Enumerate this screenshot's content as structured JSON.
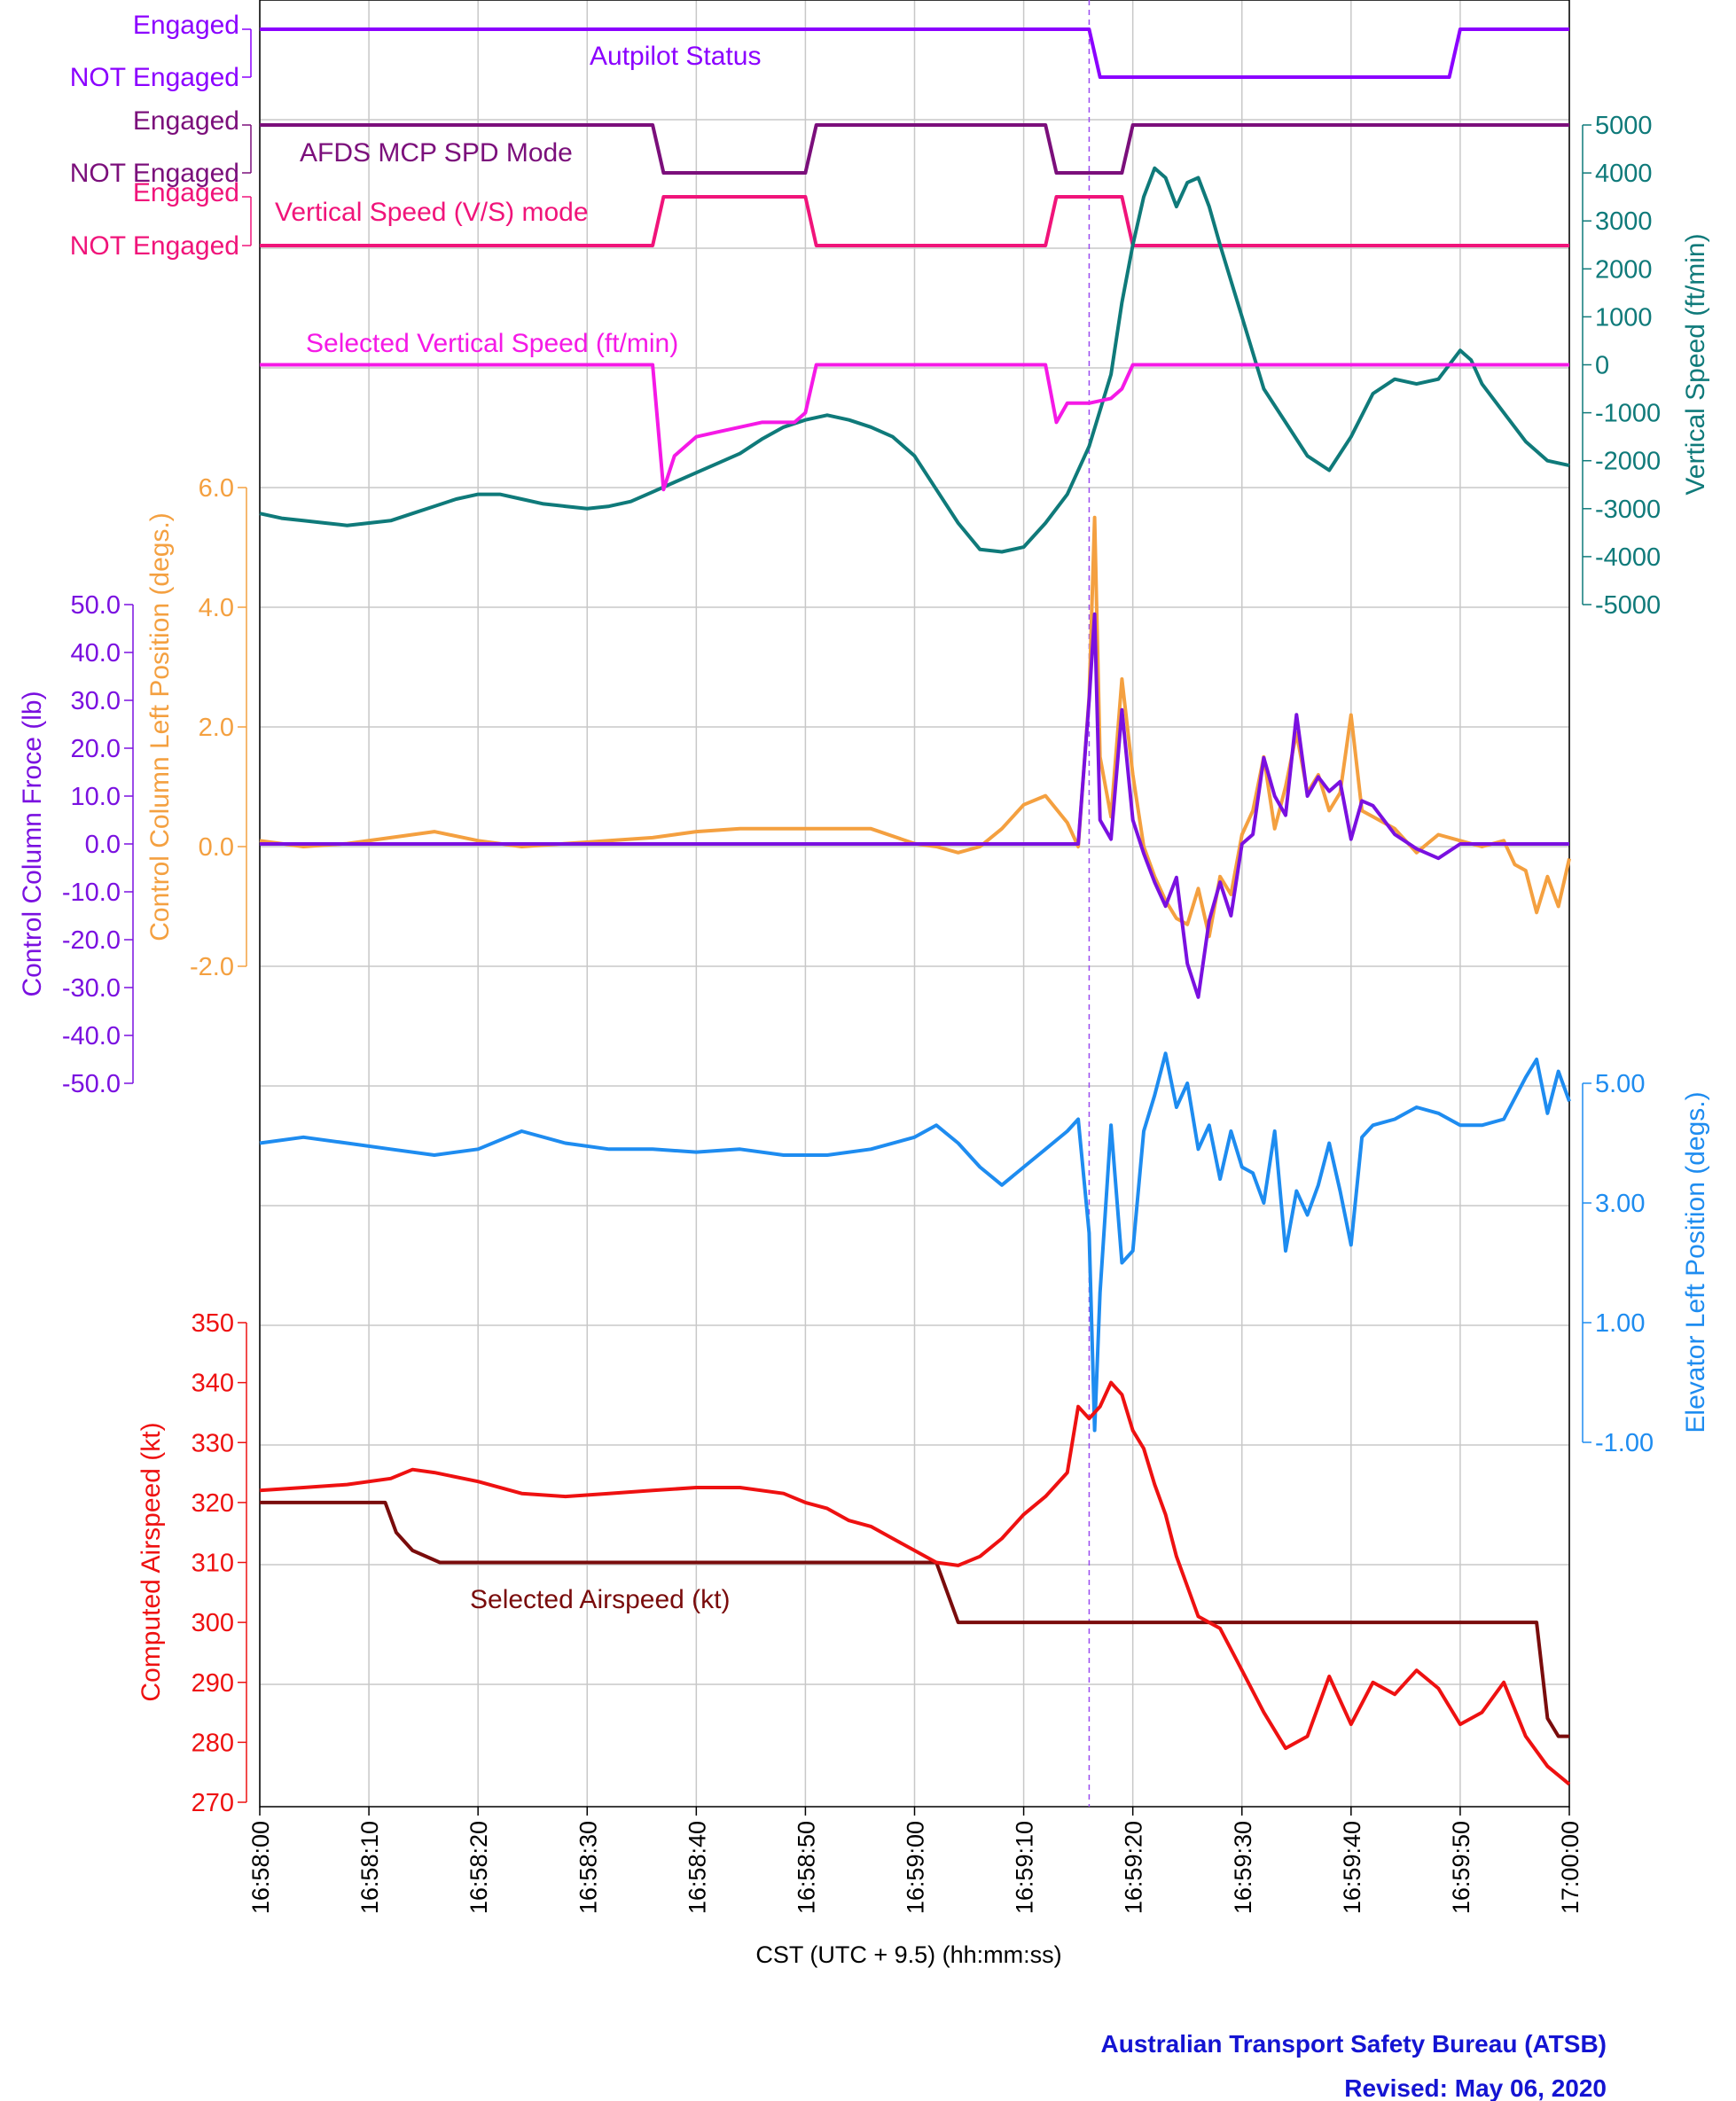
{
  "colors": {
    "autopilot": "#8B00FF",
    "mcp_spd": "#7B0F7B",
    "vs_mode": "#F0147A",
    "sel_vs": "#F519E6",
    "vs": "#0F7A7A",
    "cc_pos": "#F4A040",
    "cc_force": "#7A10E0",
    "elevator": "#1E8CF0",
    "airspeed": "#EE1111",
    "sel_airspeed": "#7A0C0C",
    "atsb": "#1414D2",
    "grid": "#C8C8C8"
  },
  "footer": {
    "agency": "Australian Transport Safety Bureau (ATSB)",
    "revised": "Revised: May 06, 2020"
  },
  "chart_data": {
    "type": "line",
    "x_label": "CST (UTC + 9.5) (hh:mm:ss)",
    "x_ticks": [
      "16:58:00",
      "16:58:10",
      "16:58:20",
      "16:58:30",
      "16:58:40",
      "16:58:50",
      "16:59:00",
      "16:59:10",
      "16:59:20",
      "16:59:30",
      "16:59:40",
      "16:59:50",
      "17:00:00"
    ],
    "x_range_seconds": [
      0,
      120
    ],
    "event_marker_seconds": 76,
    "discrete": [
      {
        "name": "Autpilot Status",
        "states": [
          "Engaged",
          "NOT Engaged"
        ],
        "x": [
          0,
          76,
          77,
          109,
          110,
          120
        ],
        "v": [
          1,
          1,
          0,
          0,
          1,
          1
        ]
      },
      {
        "name": "AFDS MCP SPD Mode",
        "states": [
          "Engaged",
          "NOT Engaged"
        ],
        "x": [
          0,
          36,
          37,
          50,
          51,
          72,
          73,
          79,
          80,
          120
        ],
        "v": [
          1,
          1,
          0,
          0,
          1,
          1,
          0,
          0,
          1,
          1
        ]
      },
      {
        "name": "Vertical Speed (V/S) mode",
        "states": [
          "Engaged",
          "NOT Engaged"
        ],
        "x": [
          0,
          36,
          37,
          50,
          51,
          72,
          73,
          79,
          80,
          120
        ],
        "v": [
          0,
          0,
          1,
          1,
          0,
          0,
          1,
          1,
          0,
          0
        ]
      }
    ],
    "vertical_speed": {
      "ylabel": "Vertical Speed (ft/min)",
      "y_ticks": [
        "5000",
        "4000",
        "3000",
        "2000",
        "1000",
        "0",
        "-1000",
        "-2000",
        "-3000",
        "-4000",
        "-5000"
      ],
      "ylim": [
        -5000,
        5000
      ],
      "series": [
        {
          "name": "Selected Vertical Speed (ft/min)",
          "x": [
            0,
            36,
            37,
            38,
            40,
            42,
            44,
            46,
            49,
            50,
            51,
            72,
            73,
            74,
            76,
            78,
            79,
            80,
            120
          ],
          "y": [
            0,
            0,
            -2600,
            -1900,
            -1500,
            -1400,
            -1300,
            -1200,
            -1200,
            -1000,
            0,
            0,
            -1200,
            -800,
            -800,
            -700,
            -500,
            0,
            0
          ]
        },
        {
          "name": "",
          "x": [
            0,
            2,
            4,
            6,
            8,
            10,
            12,
            14,
            16,
            18,
            20,
            22,
            24,
            26,
            28,
            30,
            32,
            34,
            36,
            38,
            40,
            42,
            44,
            46,
            48,
            50,
            52,
            54,
            56,
            58,
            60,
            62,
            64,
            66,
            68,
            70,
            72,
            74,
            76,
            78,
            79,
            80,
            81,
            82,
            83,
            84,
            85,
            86,
            87,
            88,
            90,
            92,
            94,
            96,
            98,
            100,
            102,
            104,
            106,
            108,
            110,
            111,
            112,
            114,
            116,
            118,
            120
          ],
          "y": [
            -3100,
            -3200,
            -3250,
            -3300,
            -3350,
            -3300,
            -3250,
            -3100,
            -2950,
            -2800,
            -2700,
            -2700,
            -2800,
            -2900,
            -2950,
            -3000,
            -2950,
            -2850,
            -2650,
            -2450,
            -2250,
            -2050,
            -1850,
            -1550,
            -1300,
            -1150,
            -1050,
            -1150,
            -1300,
            -1500,
            -1900,
            -2600,
            -3300,
            -3850,
            -3900,
            -3800,
            -3300,
            -2700,
            -1700,
            -200,
            1300,
            2500,
            3500,
            4100,
            3900,
            3300,
            3800,
            3900,
            3300,
            2500,
            1000,
            -500,
            -1200,
            -1900,
            -2200,
            -1500,
            -600,
            -300,
            -400,
            -300,
            300,
            100,
            -400,
            -1000,
            -1600,
            -2000,
            -2100
          ]
        }
      ]
    },
    "control_column": {
      "axes": [
        {
          "label": "Control Column Froce (lb)",
          "ticks": [
            "50.0",
            "40.0",
            "30.0",
            "20.0",
            "10.0",
            "0.0",
            "-10.0",
            "-20.0",
            "-30.0",
            "-40.0",
            "-50.0"
          ],
          "ylim": [
            -50,
            50
          ]
        },
        {
          "label": "Control Column Left Position (degs.)",
          "ticks": [
            "6.0",
            "4.0",
            "2.0",
            "0.0",
            "-2.0"
          ],
          "ylim": [
            -2,
            6
          ]
        }
      ],
      "series": [
        {
          "name": "Control Column Left Position (degs.)",
          "x": [
            0,
            4,
            8,
            12,
            16,
            20,
            24,
            28,
            32,
            36,
            40,
            44,
            48,
            52,
            56,
            60,
            62,
            64,
            66,
            68,
            70,
            72,
            74,
            75,
            76,
            76.5,
            77,
            78,
            79,
            80,
            81,
            82,
            83,
            84,
            85,
            86,
            87,
            88,
            89,
            90,
            91,
            92,
            93,
            94,
            95,
            96,
            97,
            98,
            99,
            100,
            101,
            102,
            104,
            106,
            108,
            110,
            112,
            114,
            115,
            116,
            117,
            118,
            119,
            120
          ],
          "y": [
            0.1,
            0.0,
            0.05,
            0.15,
            0.25,
            0.1,
            0.0,
            0.05,
            0.1,
            0.15,
            0.25,
            0.3,
            0.3,
            0.3,
            0.3,
            0.05,
            0.0,
            -0.1,
            0.0,
            0.3,
            0.7,
            0.85,
            0.4,
            0.0,
            2.5,
            5.5,
            1.5,
            0.5,
            2.8,
            1.2,
            0.0,
            -0.5,
            -0.9,
            -1.2,
            -1.3,
            -0.7,
            -1.5,
            -0.5,
            -0.8,
            0.2,
            0.6,
            1.5,
            0.3,
            1.0,
            1.9,
            0.9,
            1.2,
            0.6,
            0.9,
            2.2,
            0.6,
            0.5,
            0.3,
            -0.1,
            0.2,
            0.1,
            0.0,
            0.1,
            -0.3,
            -0.4,
            -1.1,
            -0.5,
            -1.0,
            -0.2
          ]
        },
        {
          "name": "Control Column Froce (lb)",
          "x": [
            0,
            10,
            20,
            30,
            40,
            50,
            60,
            70,
            74,
            75,
            76,
            76.5,
            77,
            78,
            79,
            80,
            81,
            82,
            83,
            84,
            85,
            86,
            87,
            88,
            89,
            90,
            91,
            92,
            93,
            94,
            95,
            96,
            97,
            98,
            99,
            100,
            101,
            102,
            104,
            106,
            108,
            110,
            112,
            114,
            116,
            118,
            120
          ],
          "y": [
            0,
            0,
            0,
            0,
            0,
            0,
            0,
            0,
            0,
            0,
            30,
            48,
            5,
            1,
            28,
            5,
            -2,
            -8,
            -13,
            -7,
            -25,
            -32,
            -16,
            -8,
            -15,
            0,
            2,
            18,
            10,
            6,
            27,
            10,
            14,
            11,
            13,
            1,
            9,
            8,
            2,
            -1,
            -3,
            0,
            0,
            0,
            0,
            0,
            0
          ]
        }
      ]
    },
    "elevator": {
      "ylabel": "Elevator Left Position (degs.)",
      "y_ticks": [
        "5.00",
        "3.00",
        "1.00",
        "-1.00"
      ],
      "ylim": [
        -1,
        5
      ],
      "series": [
        {
          "name": "",
          "x": [
            0,
            4,
            8,
            12,
            16,
            20,
            24,
            28,
            32,
            36,
            40,
            44,
            48,
            52,
            56,
            60,
            62,
            64,
            66,
            68,
            70,
            72,
            74,
            75,
            76,
            76.5,
            77,
            78,
            79,
            80,
            81,
            82,
            83,
            84,
            85,
            86,
            87,
            88,
            89,
            90,
            91,
            92,
            93,
            94,
            95,
            96,
            97,
            98,
            99,
            100,
            101,
            102,
            104,
            106,
            108,
            110,
            112,
            114,
            116,
            117,
            118,
            119,
            120
          ],
          "y": [
            4.0,
            4.1,
            4.0,
            3.9,
            3.8,
            3.9,
            4.2,
            4.0,
            3.9,
            3.9,
            3.85,
            3.9,
            3.8,
            3.8,
            3.9,
            4.1,
            4.3,
            4.0,
            3.6,
            3.3,
            3.6,
            3.9,
            4.2,
            4.4,
            2.5,
            -0.8,
            1.5,
            4.3,
            2.0,
            2.2,
            4.2,
            4.8,
            5.5,
            4.6,
            5.0,
            3.9,
            4.3,
            3.4,
            4.2,
            3.6,
            3.5,
            3.0,
            4.2,
            2.2,
            3.2,
            2.8,
            3.3,
            4.0,
            3.2,
            2.3,
            4.1,
            4.3,
            4.4,
            4.6,
            4.5,
            4.3,
            4.3,
            4.4,
            5.1,
            5.4,
            4.5,
            5.2,
            4.7
          ]
        }
      ]
    },
    "airspeed": {
      "ylabel": "Computed Airspeed (kt)",
      "y_ticks": [
        "350",
        "340",
        "330",
        "320",
        "310",
        "300",
        "290",
        "280",
        "270"
      ],
      "ylim": [
        270,
        350
      ],
      "series": [
        {
          "name": "",
          "x": [
            0,
            4,
            8,
            12,
            14,
            16,
            20,
            24,
            28,
            32,
            36,
            40,
            44,
            48,
            50,
            52,
            54,
            56,
            58,
            60,
            62,
            64,
            66,
            68,
            70,
            72,
            74,
            75,
            76,
            77,
            78,
            79,
            80,
            81,
            82,
            83,
            84,
            85,
            86,
            88,
            90,
            92,
            94,
            96,
            98,
            100,
            102,
            104,
            106,
            108,
            110,
            112,
            114,
            116,
            118,
            120
          ],
          "y": [
            322,
            322.5,
            323,
            324,
            325.5,
            325,
            323.5,
            321.5,
            321,
            321.5,
            322,
            322.5,
            322.5,
            321.5,
            320,
            319,
            317,
            316,
            314,
            312,
            310,
            309.5,
            311,
            314,
            318,
            321,
            325,
            336,
            334,
            336,
            340,
            338,
            332,
            329,
            323,
            318,
            311,
            306,
            301,
            299,
            292,
            285,
            279,
            281,
            291,
            283,
            290,
            288,
            292,
            289,
            283,
            285,
            290,
            281,
            276,
            273
          ]
        },
        {
          "name": "Selected Airspeed (kt)",
          "x": [
            0,
            11.5,
            12.5,
            14,
            16.5,
            62,
            63,
            64,
            117,
            118,
            119,
            120
          ],
          "y": [
            320,
            320,
            315,
            312,
            310,
            310,
            305,
            300,
            300,
            284,
            281,
            281
          ]
        }
      ]
    }
  }
}
